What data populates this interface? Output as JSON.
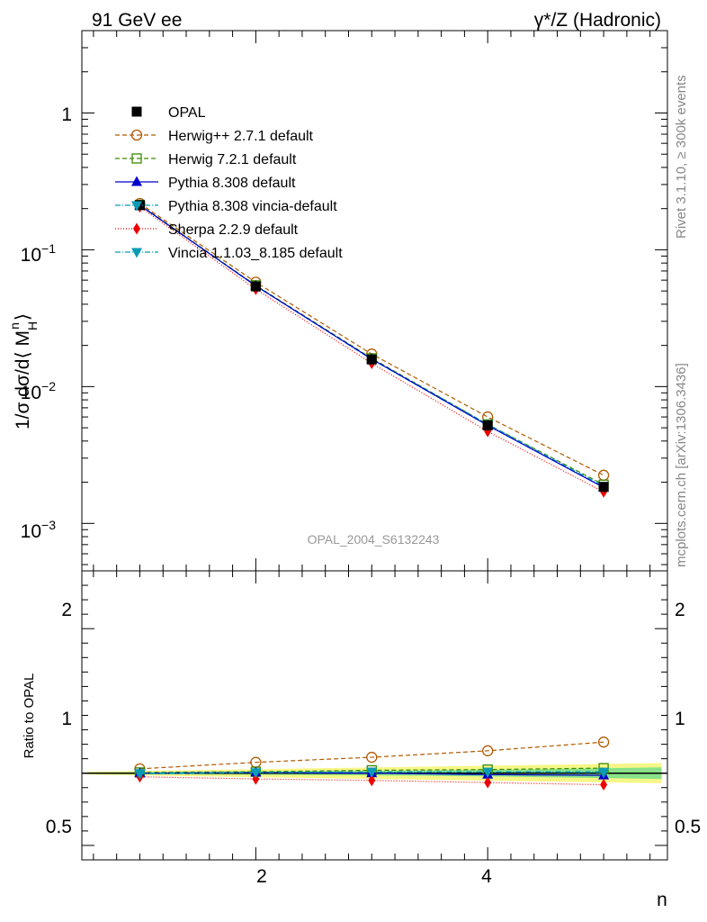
{
  "header": {
    "left": "91 GeV ee",
    "right": "γ*/Z (Hadronic)"
  },
  "side_labels": {
    "rivet": "Rivet 3.1.10, ≥ 300k events",
    "mcplots": "mcplots.cern.ch [arXiv:1306.3436]"
  },
  "analysis_id": "OPAL_2004_S6132243",
  "main_axis": {
    "ylabel": "1/σ dσ/d⟨ M",
    "ylabel_sup": "n",
    "ylabel_sub": "H",
    "ylabel_end": "⟩",
    "tick_1": "1",
    "tick_m1_base": "10",
    "tick_m1_exp": "−1",
    "tick_m2_base": "10",
    "tick_m2_exp": "−2",
    "tick_m3_base": "10",
    "tick_m3_exp": "−3"
  },
  "ratio_axis": {
    "ylabel": "Ratio to OPAL",
    "ticks_left": [
      "2",
      "1",
      "0.5"
    ],
    "ticks_right": [
      "2",
      "1",
      "0.5"
    ]
  },
  "x_axis": {
    "label": "n",
    "ticks": [
      "2",
      "4"
    ]
  },
  "chart_data": {
    "type": "line",
    "title": "91 GeV ee — γ*/Z (Hadronic)",
    "xlabel": "n",
    "ylabel": "1/σ dσ/d⟨ M_H^n ⟩",
    "x": [
      1,
      2,
      3,
      4,
      5
    ],
    "xlim": [
      0.5,
      5.55
    ],
    "ylim": [
      0.00045,
      4
    ],
    "yscale": "log",
    "ratio_ylim": [
      0.4,
      2.4
    ],
    "reference": "OPAL",
    "legend_position": "top-left",
    "series": [
      {
        "name": "OPAL",
        "color": "#000000",
        "marker": "square-filled",
        "dash": "solid",
        "values": [
          0.212,
          0.054,
          0.0158,
          0.0052,
          0.00185
        ]
      },
      {
        "name": "Herwig++ 2.7.1 default",
        "color": "#b05a00",
        "marker": "circle-open",
        "dash": "5,3",
        "values": [
          0.218,
          0.058,
          0.0173,
          0.006,
          0.00225
        ]
      },
      {
        "name": "Herwig 7.2.1 default",
        "color": "#3a8a00",
        "marker": "square-open",
        "dash": "5,3",
        "values": [
          0.213,
          0.055,
          0.0161,
          0.0053,
          0.00192
        ]
      },
      {
        "name": "Pythia 8.308 default",
        "color": "#0000cc",
        "marker": "triangle-up",
        "dash": "solid",
        "values": [
          0.212,
          0.0545,
          0.0159,
          0.0052,
          0.00183
        ]
      },
      {
        "name": "Pythia 8.308 vincia-default",
        "color": "#0a9ab5",
        "marker": "triangle-down",
        "dash": "6,2,1,2",
        "values": [
          0.212,
          0.0545,
          0.0159,
          0.0053,
          0.00187
        ]
      },
      {
        "name": "Sherpa 2.2.9 default",
        "color": "#ee0000",
        "marker": "diamond",
        "dash": "1,2",
        "values": [
          0.206,
          0.0515,
          0.0148,
          0.0047,
          0.0017
        ]
      },
      {
        "name": "Vincia 1.1.03_8.185 default",
        "color": "#0a9ab5",
        "marker": "triangle-down",
        "dash": "6,2,1,2",
        "values": [
          0.211,
          0.0545,
          0.0158,
          0.0052,
          0.00187
        ]
      }
    ],
    "ratio_series": [
      {
        "name": "Herwig++ 2.7.1 default",
        "values": [
          1.03,
          1.075,
          1.11,
          1.155,
          1.215
        ]
      },
      {
        "name": "Herwig 7.2.1 default",
        "values": [
          1.005,
          1.01,
          1.02,
          1.025,
          1.035
        ]
      },
      {
        "name": "Pythia 8.308 default",
        "values": [
          1.0,
          1.005,
          1.0,
          0.99,
          0.985
        ]
      },
      {
        "name": "Pythia 8.308 vincia-default",
        "values": [
          1.0,
          1.005,
          1.01,
          1.01,
          1.01
        ]
      },
      {
        "name": "Sherpa 2.2.9 default",
        "values": [
          0.975,
          0.96,
          0.95,
          0.935,
          0.92
        ]
      },
      {
        "name": "Vincia 1.1.03_8.185 default",
        "values": [
          0.995,
          1.005,
          1.01,
          1.01,
          1.005
        ]
      }
    ],
    "uncertainty_band": {
      "x": [
        0.55,
        5.5
      ],
      "stat_lo": [
        0.995,
        0.99,
        0.985,
        0.975,
        0.96
      ],
      "stat_hi": [
        1.005,
        1.01,
        1.015,
        1.025,
        1.04
      ],
      "total_lo": [
        0.99,
        0.975,
        0.96,
        0.945,
        0.93
      ],
      "total_hi": [
        1.01,
        1.025,
        1.04,
        1.055,
        1.07
      ]
    }
  }
}
